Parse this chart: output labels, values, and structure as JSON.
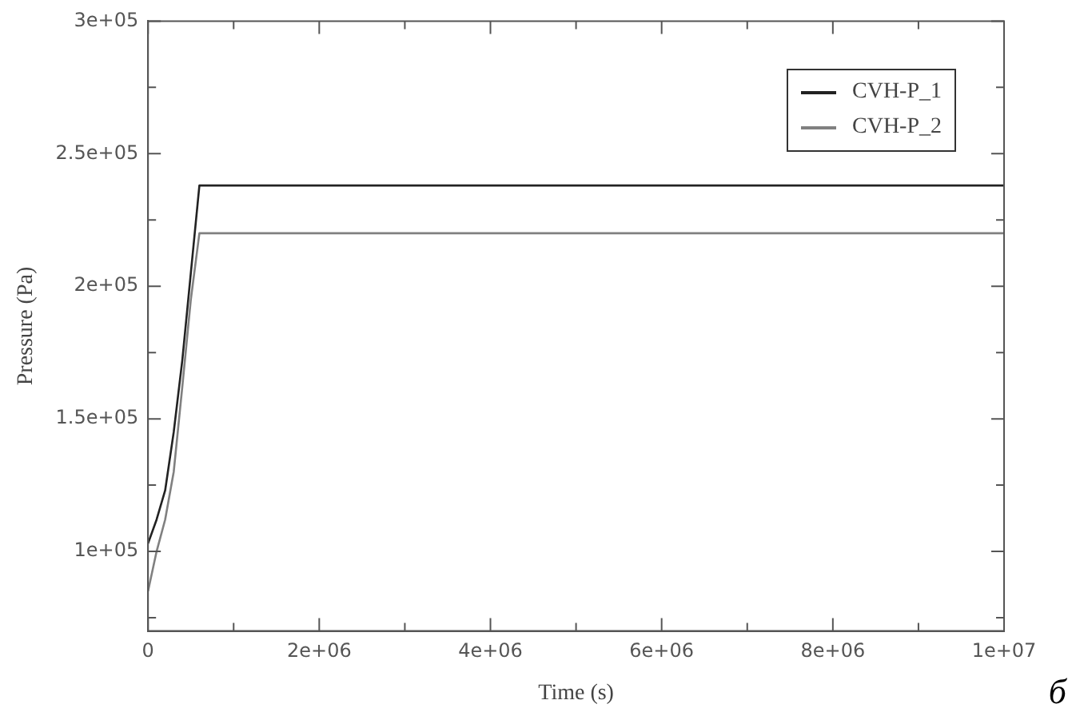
{
  "chart_data": {
    "type": "line",
    "xlabel": "Time (s)",
    "ylabel": "Pressure (Pa)",
    "xlim": [
      0,
      10000000
    ],
    "ylim": [
      70000,
      300000
    ],
    "xticks": [
      0,
      {
        "value": 1000000,
        "label": null
      },
      {
        "value": 2000000,
        "label": "2e+06"
      },
      {
        "value": 3000000,
        "label": null
      },
      {
        "value": 4000000,
        "label": "4e+06"
      },
      {
        "value": 5000000,
        "label": null
      },
      {
        "value": 6000000,
        "label": "6e+06"
      },
      {
        "value": 7000000,
        "label": null
      },
      {
        "value": 8000000,
        "label": "8e+06"
      },
      {
        "value": 9000000,
        "label": null
      },
      {
        "value": 10000000,
        "label": "1e+07"
      }
    ],
    "yticks": [
      {
        "value": 75000,
        "label": null
      },
      {
        "value": 100000,
        "label": "1e+05"
      },
      {
        "value": 125000,
        "label": null
      },
      {
        "value": 150000,
        "label": "1.5e+05"
      },
      {
        "value": 175000,
        "label": null
      },
      {
        "value": 200000,
        "label": "2e+05"
      },
      {
        "value": 225000,
        "label": null
      },
      {
        "value": 250000,
        "label": "2.5e+05"
      },
      {
        "value": 275000,
        "label": null
      },
      {
        "value": 300000,
        "label": "3e+05"
      }
    ],
    "series": [
      {
        "name": "CVH-P_1",
        "color": "#222222",
        "x": [
          0,
          100000,
          200000,
          300000,
          400000,
          500000,
          600000,
          10000000
        ],
        "values": [
          103000,
          112000,
          123000,
          145000,
          172000,
          205000,
          238000,
          238000
        ]
      },
      {
        "name": "CVH-P_2",
        "color": "#808080",
        "x": [
          0,
          100000,
          200000,
          300000,
          400000,
          500000,
          600000,
          10000000
        ],
        "values": [
          85000,
          100000,
          112000,
          130000,
          162000,
          195000,
          220000,
          220000
        ]
      }
    ],
    "grid": false,
    "legend": "top right",
    "marker": "none",
    "line_style": "solid",
    "annotations": [
      "б"
    ]
  }
}
